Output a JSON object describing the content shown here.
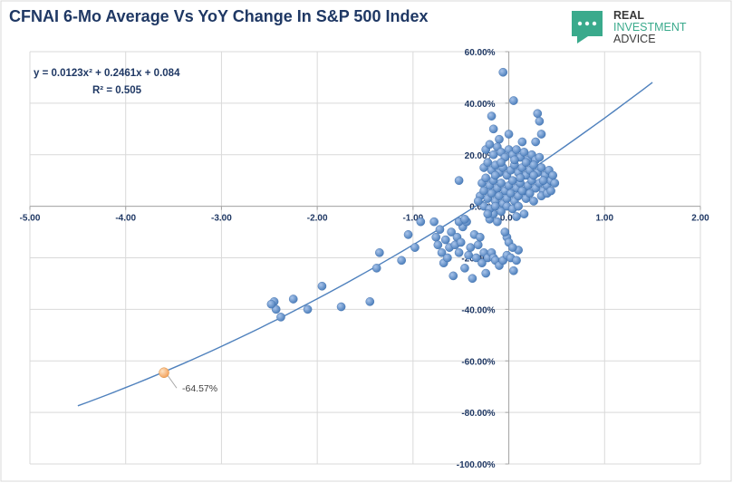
{
  "title": "CFNAI 6-Mo Average Vs YoY Change In S&P 500 Index",
  "logo": {
    "line1": "REAL",
    "line2": "INVESTMENT",
    "line3": "ADVICE",
    "icon": "chat-dots-icon",
    "color": "#3aaa8c"
  },
  "chart_data": {
    "type": "scatter",
    "title": "CFNAI 6-Mo Average Vs YoY Change In S&P 500 Index",
    "xlabel": "",
    "ylabel": "",
    "xlim": [
      -5.0,
      2.0
    ],
    "ylim": [
      -1.0,
      0.6
    ],
    "x_ticks": [
      -5,
      -4,
      -3,
      -2,
      -1,
      0,
      1,
      2
    ],
    "x_tick_labels": [
      "-5.00",
      "-4.00",
      "-3.00",
      "-2.00",
      "-1.00",
      "0.00",
      "1.00",
      "2.00"
    ],
    "y_ticks": [
      0.6,
      0.4,
      0.2,
      0.0,
      -0.2,
      -0.4,
      -0.6,
      -0.8,
      -1.0
    ],
    "y_tick_labels": [
      "60.00%",
      "40.00%",
      "20.00%",
      "0.00%",
      "-20.00%",
      "-40.00%",
      "-60.00%",
      "-80.00%",
      "-100.00%"
    ],
    "grid": true,
    "legend": "none",
    "point_color": "#4f81bd",
    "trend_color": "#4f81bd",
    "highlight_color": "#f4a460",
    "trendline": {
      "type": "polynomial",
      "equation": "y = 0.0123x² + 0.2461x + 0.084",
      "r_squared": "R² = 0.505",
      "coefficients": [
        0.0123,
        0.2461,
        0.084
      ],
      "x_range": [
        -4.5,
        1.5
      ]
    },
    "highlight": {
      "x": -3.6,
      "y": -0.6457,
      "label": "-64.57%"
    },
    "points": [
      [
        -2.45,
        -0.37
      ],
      [
        -2.43,
        -0.4
      ],
      [
        -2.48,
        -0.38
      ],
      [
        -2.38,
        -0.43
      ],
      [
        -2.25,
        -0.36
      ],
      [
        -2.1,
        -0.4
      ],
      [
        -1.95,
        -0.31
      ],
      [
        -1.75,
        -0.39
      ],
      [
        -1.45,
        -0.37
      ],
      [
        -1.38,
        -0.24
      ],
      [
        -1.35,
        -0.18
      ],
      [
        -1.12,
        -0.21
      ],
      [
        -1.05,
        -0.11
      ],
      [
        -0.98,
        -0.16
      ],
      [
        -0.92,
        -0.06
      ],
      [
        -0.78,
        -0.06
      ],
      [
        -0.76,
        -0.12
      ],
      [
        -0.74,
        -0.15
      ],
      [
        -0.72,
        -0.09
      ],
      [
        -0.7,
        -0.18
      ],
      [
        -0.68,
        -0.22
      ],
      [
        -0.66,
        -0.13
      ],
      [
        -0.64,
        -0.2
      ],
      [
        -0.62,
        -0.16
      ],
      [
        -0.6,
        -0.1
      ],
      [
        -0.58,
        -0.27
      ],
      [
        -0.56,
        -0.15
      ],
      [
        -0.54,
        -0.12
      ],
      [
        -0.52,
        -0.18
      ],
      [
        -0.5,
        -0.14
      ],
      [
        -0.48,
        -0.08
      ],
      [
        -0.46,
        -0.24
      ],
      [
        -0.44,
        -0.06
      ],
      [
        -0.42,
        -0.19
      ],
      [
        -0.4,
        -0.16
      ],
      [
        -0.38,
        -0.28
      ],
      [
        -0.36,
        -0.11
      ],
      [
        -0.34,
        -0.2
      ],
      [
        -0.32,
        -0.15
      ],
      [
        -0.52,
        0.1
      ],
      [
        -0.52,
        -0.06
      ],
      [
        -0.46,
        -0.05
      ],
      [
        -0.3,
        -0.12
      ],
      [
        -0.28,
        -0.22
      ],
      [
        -0.26,
        -0.18
      ],
      [
        -0.24,
        -0.26
      ],
      [
        -0.22,
        -0.2
      ],
      [
        -0.18,
        -0.18
      ],
      [
        -0.16,
        -0.2
      ],
      [
        -0.14,
        -0.21
      ],
      [
        -0.1,
        -0.23
      ],
      [
        -0.06,
        -0.21
      ],
      [
        -0.02,
        -0.19
      ],
      [
        0.02,
        -0.2
      ],
      [
        0.05,
        -0.25
      ],
      [
        0.08,
        -0.21
      ],
      [
        0.1,
        -0.17
      ],
      [
        -0.02,
        -0.12
      ],
      [
        -0.04,
        -0.1
      ],
      [
        0.0,
        -0.14
      ],
      [
        0.04,
        -0.16
      ],
      [
        -0.2,
        -0.05
      ],
      [
        -0.16,
        -0.03
      ],
      [
        -0.12,
        -0.06
      ],
      [
        -0.06,
        0.52
      ],
      [
        0.05,
        0.41
      ],
      [
        -0.18,
        0.35
      ],
      [
        0.3,
        0.36
      ],
      [
        0.32,
        0.33
      ],
      [
        0.34,
        0.28
      ],
      [
        -0.16,
        0.3
      ],
      [
        -0.1,
        0.26
      ],
      [
        0.0,
        0.28
      ],
      [
        0.14,
        0.25
      ],
      [
        0.28,
        0.25
      ],
      [
        -0.24,
        0.22
      ],
      [
        -0.2,
        0.24
      ],
      [
        -0.16,
        0.2
      ],
      [
        -0.12,
        0.23
      ],
      [
        -0.08,
        0.21
      ],
      [
        -0.04,
        0.19
      ],
      [
        0.0,
        0.22
      ],
      [
        0.04,
        0.2
      ],
      [
        0.08,
        0.22
      ],
      [
        0.12,
        0.19
      ],
      [
        0.16,
        0.21
      ],
      [
        0.2,
        0.18
      ],
      [
        0.24,
        0.2
      ],
      [
        0.28,
        0.18
      ],
      [
        0.32,
        0.19
      ],
      [
        -0.26,
        0.15
      ],
      [
        -0.22,
        0.17
      ],
      [
        -0.18,
        0.14
      ],
      [
        -0.14,
        0.16
      ],
      [
        -0.1,
        0.13
      ],
      [
        -0.06,
        0.15
      ],
      [
        -0.02,
        0.12
      ],
      [
        0.02,
        0.14
      ],
      [
        0.06,
        0.16
      ],
      [
        0.1,
        0.13
      ],
      [
        0.14,
        0.15
      ],
      [
        0.18,
        0.12
      ],
      [
        0.22,
        0.14
      ],
      [
        0.26,
        0.16
      ],
      [
        0.3,
        0.13
      ],
      [
        0.34,
        0.15
      ],
      [
        0.38,
        0.12
      ],
      [
        0.42,
        0.14
      ],
      [
        -0.28,
        0.09
      ],
      [
        -0.24,
        0.11
      ],
      [
        -0.2,
        0.08
      ],
      [
        -0.16,
        0.1
      ],
      [
        -0.12,
        0.07
      ],
      [
        -0.08,
        0.09
      ],
      [
        -0.04,
        0.06
      ],
      [
        0.0,
        0.08
      ],
      [
        0.04,
        0.1
      ],
      [
        0.08,
        0.07
      ],
      [
        0.12,
        0.09
      ],
      [
        0.16,
        0.06
      ],
      [
        0.2,
        0.08
      ],
      [
        0.24,
        0.1
      ],
      [
        0.28,
        0.07
      ],
      [
        0.32,
        0.09
      ],
      [
        0.36,
        0.06
      ],
      [
        0.4,
        0.08
      ],
      [
        0.44,
        0.1
      ],
      [
        0.48,
        0.09
      ],
      [
        -0.3,
        0.04
      ],
      [
        -0.26,
        0.06
      ],
      [
        -0.22,
        0.03
      ],
      [
        -0.18,
        0.05
      ],
      [
        -0.14,
        0.02
      ],
      [
        -0.1,
        0.04
      ],
      [
        -0.06,
        0.01
      ],
      [
        -0.02,
        0.03
      ],
      [
        0.02,
        0.05
      ],
      [
        0.06,
        0.02
      ],
      [
        0.1,
        0.04
      ],
      [
        0.14,
        0.06
      ],
      [
        0.18,
        0.03
      ],
      [
        0.22,
        0.05
      ],
      [
        0.26,
        0.02
      ],
      [
        0.34,
        0.04
      ],
      [
        0.4,
        0.05
      ],
      [
        0.44,
        0.06
      ],
      [
        -0.26,
        0.0
      ],
      [
        -0.2,
        -0.01
      ],
      [
        -0.14,
        0.0
      ],
      [
        -0.08,
        -0.02
      ],
      [
        -0.02,
        0.0
      ],
      [
        0.04,
        -0.01
      ],
      [
        0.1,
        0.0
      ],
      [
        0.16,
        -0.03
      ],
      [
        0.08,
        -0.04
      ],
      [
        -0.22,
        -0.03
      ],
      [
        -0.32,
        0.02
      ],
      [
        0.12,
        0.11
      ],
      [
        0.18,
        0.17
      ],
      [
        0.46,
        0.12
      ],
      [
        -0.08,
        0.17
      ],
      [
        0.06,
        0.18
      ],
      [
        0.26,
        0.12
      ],
      [
        -0.14,
        0.12
      ],
      [
        0.36,
        0.1
      ]
    ]
  }
}
